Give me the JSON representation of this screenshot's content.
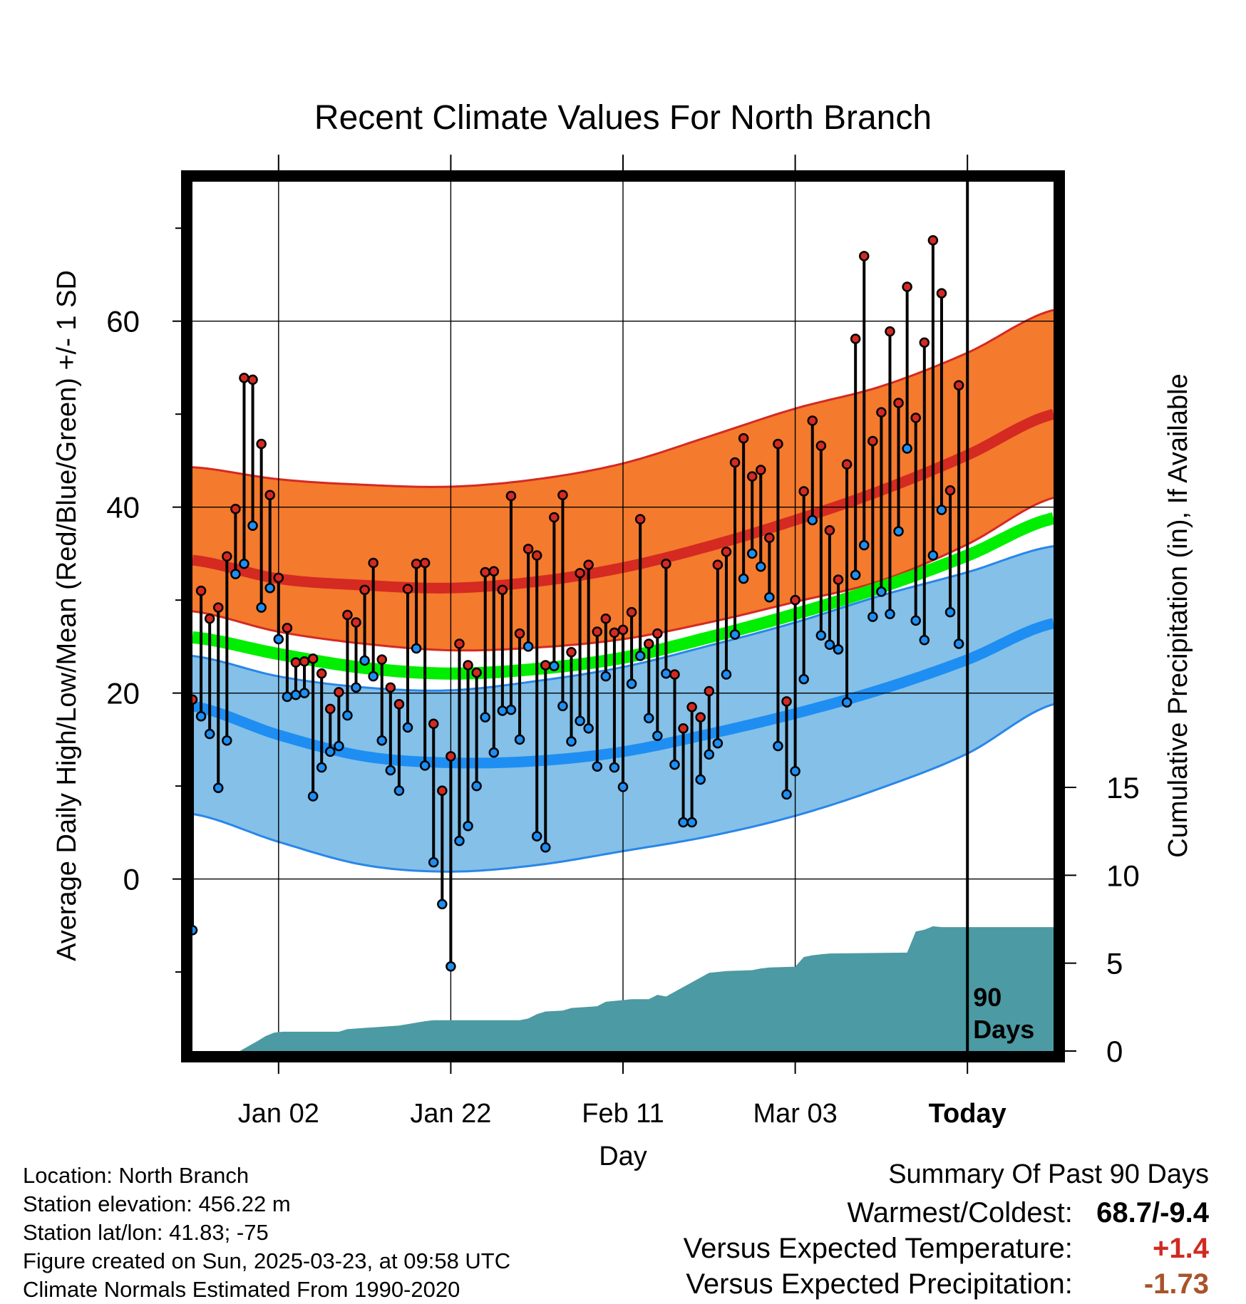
{
  "chart_data": {
    "type": "line",
    "title": "Recent Climate Values For North Branch",
    "xlabel": "Day",
    "ylabel_left": "Average Daily High/Low/Mean (Red/Blue/Green) +/- 1 SD",
    "ylabel_right": "Cumulative Precipitation (in), If Available",
    "x_ticks": [
      "Jan 02",
      "Jan 22",
      "Feb 11",
      "Mar 03",
      "Today"
    ],
    "x_tick_days": [
      10,
      30,
      50,
      70,
      90
    ],
    "x_range": [
      0,
      100
    ],
    "y_left_ticks": [
      0,
      20,
      40,
      60
    ],
    "y_left_range": [
      -18.5,
      75
    ],
    "y_right_ticks": [
      0,
      5,
      10,
      15
    ],
    "y_right_range": [
      0,
      15
    ],
    "today_label": "90 Days",
    "normals": {
      "day": [
        0,
        10,
        20,
        30,
        40,
        50,
        60,
        70,
        80,
        90,
        100
      ],
      "high_mean": [
        34.3,
        32.3,
        31.6,
        31.3,
        32.0,
        33.5,
        35.8,
        38.6,
        41.8,
        45.6,
        50.0
      ],
      "high_upper": [
        44.3,
        43.0,
        42.4,
        42.2,
        43.0,
        44.7,
        47.6,
        50.6,
        53.0,
        56.6,
        61.2
      ],
      "high_lower": [
        28.8,
        26.6,
        25.3,
        24.6,
        24.9,
        25.8,
        27.6,
        29.8,
        32.1,
        36.0,
        41.0
      ],
      "low_mean": [
        18.6,
        15.5,
        13.2,
        12.5,
        12.7,
        13.7,
        15.6,
        17.8,
        20.4,
        23.6,
        27.5
      ],
      "low_upper": [
        24.0,
        21.8,
        20.6,
        20.3,
        21.3,
        22.8,
        25.1,
        27.6,
        30.5,
        33.0,
        35.8
      ],
      "low_lower": [
        7.0,
        4.0,
        1.5,
        0.8,
        1.5,
        3.0,
        4.6,
        6.8,
        9.8,
        13.5,
        18.8
      ],
      "mean": [
        26.0,
        24.2,
        22.7,
        22.1,
        22.6,
        23.8,
        26.0,
        28.5,
        31.4,
        34.8,
        38.8
      ]
    },
    "daily_high": [
      19.3,
      31.0,
      28.0,
      29.2,
      34.7,
      39.8,
      53.9,
      53.7,
      46.8,
      41.3,
      32.4,
      27.0,
      23.3,
      23.4,
      23.7,
      22.1,
      18.3,
      20.1,
      28.4,
      27.6,
      31.1,
      34.0,
      23.6,
      20.6,
      18.8,
      31.2,
      33.9,
      34.0,
      16.7,
      9.5,
      13.2,
      25.3,
      23.0,
      22.2,
      33.0,
      33.1,
      31.1,
      41.2,
      26.4,
      35.5,
      34.8,
      23.0,
      38.9,
      41.3,
      24.4,
      32.9,
      33.8,
      26.6,
      28.0,
      26.5,
      26.8,
      28.7,
      38.7,
      25.3,
      26.4,
      33.9,
      22.0,
      16.2,
      18.5,
      17.4,
      20.2,
      33.8,
      35.2,
      44.8,
      47.4,
      43.3,
      44.0,
      36.7,
      46.8,
      19.1,
      30.0,
      41.7,
      49.3,
      46.6,
      37.5,
      32.2,
      44.6,
      58.1,
      67.0,
      47.1,
      50.2,
      58.9,
      51.2,
      63.7,
      49.6,
      57.7,
      68.7,
      63.0,
      41.8,
      53.1
    ],
    "daily_low": [
      -5.5,
      17.5,
      15.6,
      9.8,
      14.9,
      32.8,
      33.9,
      38.0,
      29.2,
      31.3,
      25.8,
      19.6,
      19.8,
      20.0,
      8.9,
      12.0,
      13.7,
      14.3,
      17.6,
      20.6,
      23.5,
      21.8,
      14.9,
      11.7,
      9.5,
      16.3,
      24.8,
      12.2,
      1.8,
      -2.7,
      -9.4,
      4.1,
      5.7,
      10.0,
      17.4,
      13.6,
      18.1,
      18.2,
      15.0,
      25.0,
      4.6,
      3.4,
      22.9,
      18.6,
      14.8,
      17.0,
      16.2,
      12.1,
      21.8,
      12.0,
      9.9,
      21.0,
      24.0,
      17.3,
      15.4,
      22.1,
      12.3,
      6.1,
      6.1,
      10.7,
      13.4,
      14.6,
      22.0,
      26.3,
      32.3,
      35.0,
      33.6,
      30.3,
      14.3,
      9.1,
      11.6,
      21.5,
      38.6,
      26.2,
      25.2,
      24.7,
      19.0,
      32.7,
      35.9,
      28.2,
      30.9,
      28.5,
      37.4,
      46.3,
      27.8,
      25.7,
      34.8,
      39.7,
      28.7,
      25.3
    ],
    "cumulative_precip": {
      "day": [
        0,
        5.5,
        7.5,
        8.5,
        9.5,
        10.5,
        17,
        18,
        21,
        24,
        27,
        28,
        38,
        39,
        40,
        41,
        43,
        44,
        47,
        48,
        50,
        51,
        53,
        54,
        55,
        60,
        61,
        62,
        65,
        66,
        67,
        70,
        71,
        72,
        73,
        74,
        83,
        84,
        85,
        86,
        87,
        100
      ],
      "inches": [
        0,
        0,
        0.55,
        0.85,
        1.05,
        1.1,
        1.1,
        1.25,
        1.35,
        1.45,
        1.7,
        1.75,
        1.75,
        1.85,
        2.1,
        2.25,
        2.3,
        2.45,
        2.55,
        2.8,
        2.9,
        2.95,
        2.95,
        3.2,
        3.1,
        4.45,
        4.5,
        4.55,
        4.6,
        4.7,
        4.75,
        4.8,
        5.35,
        5.45,
        5.5,
        5.55,
        5.6,
        6.8,
        6.9,
        7.1,
        7.05,
        7.05
      ]
    },
    "colors": {
      "high_band": "#f47a2d",
      "high_band_edge": "#d42a22",
      "high_mean_line": "#d42a22",
      "low_band": "#84c0e8",
      "low_band_edge": "#2a86e8",
      "low_mean_line": "#1e8ef2",
      "mean_line": "#00ee00",
      "overlap_band": "#9a1a1a",
      "precip_fill": "#4c9aa3",
      "high_marker": "#d42a22",
      "low_marker": "#1e8ef2"
    },
    "grid": true
  },
  "footer": {
    "location": "Location: North Branch",
    "elevation": "Station elevation: 456.22 m",
    "latlon": "Station lat/lon: 41.83; -75",
    "created": "Figure created on Sun, 2025-03-23, at 09:58 UTC",
    "normals_note": "Climate Normals Estimated From 1990-2020"
  },
  "summary": {
    "heading": "Summary Of Past 90 Days",
    "warm_cold_label": "Warmest/Coldest:",
    "warm_cold_value": "68.7/-9.4",
    "temp_label": "Versus Expected Temperature:",
    "temp_value": "+1.4",
    "temp_color": "#d02a22",
    "precip_label": "Versus Expected Precipitation:",
    "precip_value": "-1.73",
    "precip_color": "#a8542a"
  }
}
